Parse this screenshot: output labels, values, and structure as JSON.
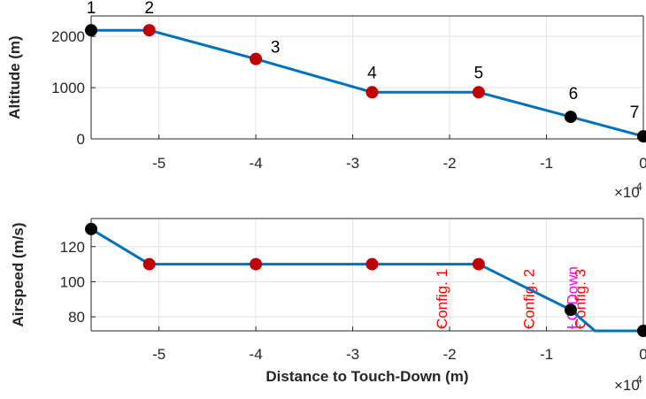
{
  "chart_data": [
    {
      "type": "line",
      "ylabel": "Altitude (m)",
      "xlabel": "",
      "x_exponent_label": "×10",
      "x_exponent_power": "4",
      "xlim": [
        -5.7,
        0
      ],
      "ylim": [
        0,
        2400
      ],
      "grid": true,
      "xticks": [
        -5,
        -4,
        -3,
        -2,
        -1,
        0
      ],
      "xtick_labels": [
        "-5",
        "-4",
        "-3",
        "-2",
        "-1",
        "0"
      ],
      "yticks": [
        0,
        1000,
        2000
      ],
      "ytick_labels": [
        "0",
        "1000",
        "2000"
      ],
      "line_color": "#0072BD",
      "series": [
        {
          "x": [
            -5.7,
            -5.1,
            -4.0,
            -2.8,
            -1.7,
            -0.75,
            0
          ],
          "y": [
            2120,
            2120,
            1560,
            910,
            910,
            430,
            50
          ]
        }
      ],
      "markers": [
        {
          "label": "1",
          "x": -5.7,
          "y": 2120,
          "color": "#000000"
        },
        {
          "label": "2",
          "x": -5.1,
          "y": 2120,
          "color": "#C00000"
        },
        {
          "label": "3",
          "x": -4.0,
          "y": 1560,
          "color": "#C00000"
        },
        {
          "label": "4",
          "x": -2.8,
          "y": 910,
          "color": "#C00000"
        },
        {
          "label": "5",
          "x": -1.7,
          "y": 910,
          "color": "#C00000"
        },
        {
          "label": "6",
          "x": -0.75,
          "y": 430,
          "color": "#000000"
        },
        {
          "label": "7",
          "x": 0,
          "y": 50,
          "color": "#000000"
        }
      ]
    },
    {
      "type": "line",
      "ylabel": "Airspeed (m/s)",
      "xlabel": "Distance to Touch-Down (m)",
      "x_exponent_label": "×10",
      "x_exponent_power": "4",
      "xlim": [
        -5.7,
        0
      ],
      "ylim": [
        72,
        136
      ],
      "grid": true,
      "xticks": [
        -5,
        -4,
        -3,
        -2,
        -1,
        0
      ],
      "xtick_labels": [
        "-5",
        "-4",
        "-3",
        "-2",
        "-1",
        "0"
      ],
      "yticks": [
        80,
        100,
        120
      ],
      "ytick_labels": [
        "80",
        "100",
        "120"
      ],
      "line_color": "#0072BD",
      "series": [
        {
          "x": [
            -5.7,
            -5.1,
            -4.0,
            -2.8,
            -1.7,
            -0.75,
            -0.5,
            0
          ],
          "y": [
            130,
            110,
            110,
            110,
            110,
            84,
            72,
            72
          ]
        }
      ],
      "markers": [
        {
          "x": -5.7,
          "y": 130,
          "color": "#000000"
        },
        {
          "x": -5.1,
          "y": 110,
          "color": "#C00000"
        },
        {
          "x": -4.0,
          "y": 110,
          "color": "#C00000"
        },
        {
          "x": -2.8,
          "y": 110,
          "color": "#C00000"
        },
        {
          "x": -1.7,
          "y": 110,
          "color": "#C00000"
        },
        {
          "x": -0.75,
          "y": 84,
          "color": "#000000"
        },
        {
          "x": 0,
          "y": 72,
          "color": "#000000"
        }
      ],
      "annotations": [
        {
          "text": "Config. 1",
          "x": -2.03,
          "color": "#FF0000"
        },
        {
          "text": "Config. 2",
          "x": -1.13,
          "color": "#FF0000"
        },
        {
          "text": "LG Down",
          "x": -0.68,
          "color": "#FF00FF"
        },
        {
          "text": "Config. 3",
          "x": -0.6,
          "color": "#FF0000"
        }
      ]
    }
  ]
}
